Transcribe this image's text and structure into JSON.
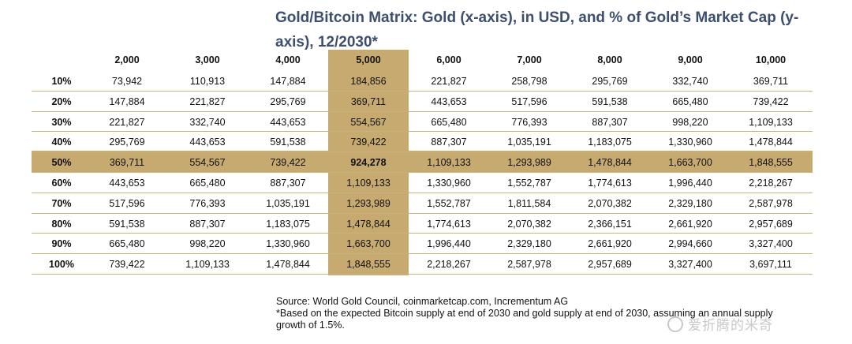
{
  "chart_data": {
    "type": "table",
    "title": "Gold/Bitcoin Matrix: Gold (x-axis), in USD, and % of Gold’s Market Cap (y-axis), 12/2030*",
    "columns": [
      "2,000",
      "3,000",
      "4,000",
      "5,000",
      "6,000",
      "7,000",
      "8,000",
      "9,000",
      "10,000"
    ],
    "rows": [
      "10%",
      "20%",
      "30%",
      "40%",
      "50%",
      "60%",
      "70%",
      "80%",
      "90%",
      "100%"
    ],
    "values": [
      [
        "73,942",
        "110,913",
        "147,884",
        "184,856",
        "221,827",
        "258,798",
        "295,769",
        "332,740",
        "369,711"
      ],
      [
        "147,884",
        "221,827",
        "295,769",
        "369,711",
        "443,653",
        "517,596",
        "591,538",
        "665,480",
        "739,422"
      ],
      [
        "221,827",
        "332,740",
        "443,653",
        "554,567",
        "665,480",
        "776,393",
        "887,307",
        "998,220",
        "1,109,133"
      ],
      [
        "295,769",
        "443,653",
        "591,538",
        "739,422",
        "887,307",
        "1,035,191",
        "1,183,075",
        "1,330,960",
        "1,478,844"
      ],
      [
        "369,711",
        "554,567",
        "739,422",
        "924,278",
        "1,109,133",
        "1,293,989",
        "1,478,844",
        "1,663,700",
        "1,848,555"
      ],
      [
        "443,653",
        "665,480",
        "887,307",
        "1,109,133",
        "1,330,960",
        "1,552,787",
        "1,774,613",
        "1,996,440",
        "2,218,267"
      ],
      [
        "517,596",
        "776,393",
        "1,035,191",
        "1,293,989",
        "1,552,787",
        "1,811,584",
        "2,070,382",
        "2,329,180",
        "2,587,978"
      ],
      [
        "591,538",
        "887,307",
        "1,183,075",
        "1,478,844",
        "1,774,613",
        "2,070,382",
        "2,366,151",
        "2,661,920",
        "2,957,689"
      ],
      [
        "665,480",
        "998,220",
        "1,330,960",
        "1,663,700",
        "1,996,440",
        "2,329,180",
        "2,661,920",
        "2,994,660",
        "3,327,400"
      ],
      [
        "739,422",
        "1,109,133",
        "1,478,844",
        "1,848,555",
        "2,218,267",
        "2,587,978",
        "2,957,689",
        "3,327,400",
        "3,697,111"
      ]
    ],
    "highlight_column": "5,000",
    "highlight_row": "50%",
    "highlight_color": "#c6aa6f",
    "title_color": "#3d4f6e"
  },
  "footnote": {
    "source": "Source: World Gold Council, coinmarketcap.com, Incrementum AG",
    "note_line1": "*Based on the expected Bitcoin supply at end of 2030 and gold supply at end of 2030, assuming an annual supply",
    "note_line2": "growth of 1.5%."
  },
  "watermark": "爱折腾的米奇"
}
